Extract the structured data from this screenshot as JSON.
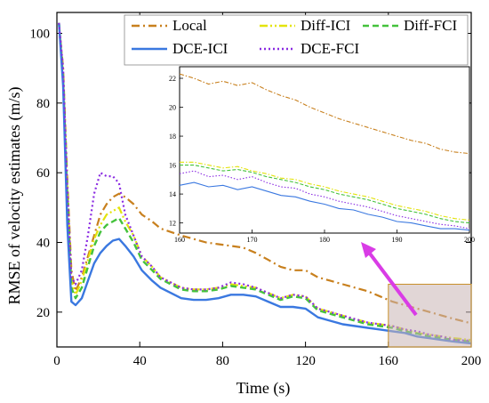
{
  "chart_data": {
    "type": "line",
    "xlabel": "Time (s)",
    "ylabel": "RMSE of velocity estimates (m/s)",
    "xlim": [
      0,
      200
    ],
    "ylim": [
      10,
      106
    ],
    "xticks": [
      0,
      40,
      80,
      120,
      160,
      200
    ],
    "yticks": [
      20,
      40,
      60,
      80,
      100
    ],
    "legend_placement": "top-right",
    "series": [
      {
        "name": "Local",
        "color": "#c8801e",
        "dash": "dashdot",
        "x": [
          1,
          3,
          5,
          7,
          9,
          12,
          15,
          18,
          21,
          24,
          27,
          30,
          33,
          37,
          41,
          46,
          50,
          55,
          60,
          66,
          72,
          78,
          84,
          90,
          96,
          102,
          108,
          114,
          120,
          126,
          132,
          138,
          144,
          150,
          156,
          162,
          168,
          174,
          180,
          186,
          192,
          200
        ],
        "y": [
          103,
          90,
          58,
          32,
          26,
          30,
          36,
          42,
          48,
          51,
          53,
          54,
          53,
          51,
          48,
          46,
          44,
          43,
          42,
          41,
          40,
          39.5,
          39,
          38.5,
          37,
          35,
          33,
          32,
          32,
          30,
          29,
          28,
          27,
          26,
          24.5,
          23,
          22,
          21,
          20,
          19,
          18,
          16.8
        ]
      },
      {
        "name": "Diff-ICI",
        "color": "#e3e30c",
        "dash": "dashdotdot",
        "x": [
          1,
          3,
          5,
          7,
          9,
          12,
          15,
          18,
          21,
          24,
          27,
          30,
          33,
          37,
          41,
          46,
          50,
          55,
          60,
          66,
          72,
          78,
          84,
          90,
          96,
          102,
          108,
          114,
          120,
          126,
          132,
          138,
          144,
          150,
          156,
          162,
          168,
          174,
          180,
          186,
          192,
          200
        ],
        "y": [
          103,
          88,
          55,
          29,
          25,
          29,
          35,
          41,
          45,
          48,
          49,
          50,
          46,
          42,
          36,
          33,
          30,
          28.5,
          27,
          26.5,
          26.5,
          27,
          28,
          27.5,
          27,
          25.5,
          24,
          25,
          24.5,
          21,
          20,
          19,
          18,
          17,
          16.5,
          16,
          15,
          14,
          13.5,
          13,
          12.5,
          12
        ]
      },
      {
        "name": "Diff-FCI",
        "color": "#44c23c",
        "dash": "dashed",
        "x": [
          1,
          3,
          5,
          7,
          9,
          12,
          15,
          18,
          21,
          24,
          27,
          30,
          33,
          37,
          41,
          46,
          50,
          55,
          60,
          66,
          72,
          78,
          84,
          90,
          96,
          102,
          108,
          114,
          120,
          126,
          132,
          138,
          144,
          150,
          156,
          162,
          168,
          174,
          180,
          186,
          192,
          200
        ],
        "y": [
          103,
          87,
          53,
          27,
          24,
          27,
          33,
          39,
          43,
          45,
          46,
          47,
          44,
          40,
          35,
          32,
          29.5,
          28,
          26.5,
          26,
          26,
          26.5,
          27.5,
          27,
          26.5,
          25,
          23.5,
          24.5,
          24,
          20.5,
          19.5,
          18.5,
          17.5,
          16.5,
          16,
          15.5,
          14.5,
          13.8,
          13,
          12.5,
          12,
          11.5
        ]
      },
      {
        "name": "DCE-ICI",
        "color": "#3a78e0",
        "dash": "solid",
        "x": [
          1,
          3,
          5,
          7,
          9,
          12,
          15,
          18,
          21,
          24,
          27,
          30,
          33,
          37,
          41,
          46,
          50,
          55,
          60,
          66,
          72,
          78,
          84,
          90,
          96,
          102,
          108,
          114,
          120,
          126,
          132,
          138,
          144,
          150,
          156,
          162,
          168,
          174,
          180,
          186,
          192,
          200
        ],
        "y": [
          103,
          85,
          45,
          23,
          22,
          24,
          29,
          34,
          37,
          39,
          40.5,
          41,
          39,
          36,
          32,
          29,
          27,
          25.5,
          24,
          23.5,
          23.5,
          24,
          25,
          25,
          24.5,
          23,
          21.5,
          21.5,
          21,
          18.5,
          17.5,
          16.5,
          16,
          15.5,
          15,
          14.5,
          14,
          13,
          12.5,
          12,
          11.5,
          11
        ]
      },
      {
        "name": "DCE-FCI",
        "color": "#8a2be2",
        "dash": "dotted",
        "x": [
          1,
          3,
          5,
          7,
          9,
          12,
          15,
          18,
          21,
          24,
          27,
          30,
          33,
          37,
          41,
          46,
          50,
          55,
          60,
          66,
          72,
          78,
          84,
          90,
          96,
          102,
          108,
          114,
          120,
          126,
          132,
          138,
          144,
          150,
          156,
          162,
          168,
          174,
          180,
          186,
          192,
          200
        ],
        "y": [
          103,
          90,
          56,
          30,
          28,
          32,
          42,
          54,
          60,
          59,
          59,
          57,
          48,
          42,
          36,
          33,
          30,
          28.5,
          27,
          26.5,
          26.5,
          27,
          28.5,
          28,
          27,
          25.5,
          24,
          25,
          24.5,
          21,
          20,
          19,
          18,
          17,
          16.5,
          16,
          15,
          14.5,
          13.5,
          13,
          12,
          11.8
        ]
      }
    ],
    "inset": {
      "xlim": [
        160,
        200
      ],
      "ylim": [
        11.3,
        22.8
      ],
      "xticks": [
        160,
        170,
        180,
        190,
        200
      ],
      "yticks": [
        12,
        14,
        16,
        18,
        20,
        22
      ],
      "series": [
        {
          "name": "Local",
          "x": [
            160,
            162,
            164,
            166,
            168,
            170,
            172,
            174,
            176,
            178,
            180,
            182,
            184,
            186,
            188,
            190,
            192,
            194,
            196,
            198,
            200
          ],
          "y": [
            22.3,
            22.0,
            21.6,
            21.8,
            21.5,
            21.7,
            21.2,
            20.8,
            20.5,
            20.0,
            19.6,
            19.2,
            18.9,
            18.6,
            18.3,
            18.0,
            17.7,
            17.5,
            17.1,
            16.9,
            16.8
          ]
        },
        {
          "name": "Diff-ICI",
          "x": [
            160,
            162,
            164,
            166,
            168,
            170,
            172,
            174,
            176,
            178,
            180,
            182,
            184,
            186,
            188,
            190,
            192,
            194,
            196,
            198,
            200
          ],
          "y": [
            16.2,
            16.2,
            16.0,
            15.8,
            15.9,
            15.6,
            15.4,
            15.1,
            15.0,
            14.7,
            14.5,
            14.2,
            14.0,
            13.8,
            13.5,
            13.2,
            13.0,
            12.8,
            12.5,
            12.3,
            12.2
          ]
        },
        {
          "name": "Diff-FCI",
          "x": [
            160,
            162,
            164,
            166,
            168,
            170,
            172,
            174,
            176,
            178,
            180,
            182,
            184,
            186,
            188,
            190,
            192,
            194,
            196,
            198,
            200
          ],
          "y": [
            16.0,
            16.0,
            15.8,
            15.6,
            15.7,
            15.5,
            15.2,
            15.0,
            14.8,
            14.5,
            14.3,
            14.0,
            13.8,
            13.6,
            13.3,
            13.0,
            12.8,
            12.6,
            12.3,
            12.1,
            12.0
          ]
        },
        {
          "name": "DCE-ICI",
          "x": [
            160,
            162,
            164,
            166,
            168,
            170,
            172,
            174,
            176,
            178,
            180,
            182,
            184,
            186,
            188,
            190,
            192,
            194,
            196,
            198,
            200
          ],
          "y": [
            14.6,
            14.8,
            14.5,
            14.6,
            14.3,
            14.5,
            14.2,
            13.9,
            13.8,
            13.5,
            13.3,
            13.0,
            12.9,
            12.6,
            12.4,
            12.1,
            12.0,
            11.8,
            11.6,
            11.6,
            11.5
          ]
        },
        {
          "name": "DCE-FCI",
          "x": [
            160,
            162,
            164,
            166,
            168,
            170,
            172,
            174,
            176,
            178,
            180,
            182,
            184,
            186,
            188,
            190,
            192,
            194,
            196,
            198,
            200
          ],
          "y": [
            15.4,
            15.6,
            15.2,
            15.3,
            15.0,
            15.2,
            14.8,
            14.5,
            14.4,
            14.0,
            13.8,
            13.5,
            13.3,
            13.1,
            12.8,
            12.5,
            12.3,
            12.1,
            11.9,
            11.8,
            11.6
          ]
        }
      ]
    }
  }
}
